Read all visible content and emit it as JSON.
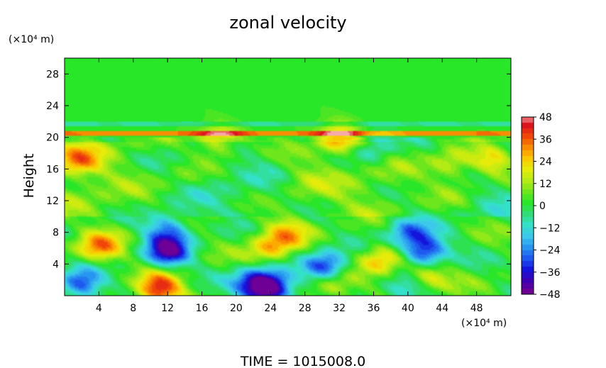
{
  "chart_data": {
    "type": "heatmap",
    "title": "zonal velocity",
    "ylabel": "Height",
    "y_unit": "(×10⁴ m)",
    "x_unit": "(×10⁴ m)",
    "footer": "TIME = 1015008.0",
    "xlim": [
      0,
      52
    ],
    "ylim": [
      0,
      30
    ],
    "x_ticks": [
      4,
      8,
      12,
      16,
      20,
      24,
      28,
      32,
      36,
      40,
      44,
      48
    ],
    "y_ticks": [
      4,
      8,
      12,
      16,
      20,
      24,
      28
    ],
    "x_tick_labels": [
      "4",
      "8",
      "12",
      "16",
      "20",
      "24",
      "28",
      "32",
      "36",
      "40",
      "44",
      "48"
    ],
    "y_tick_labels": [
      "4",
      "8",
      "12",
      "16",
      "20",
      "24",
      "28"
    ],
    "colorbar": {
      "min": -48,
      "max": 48,
      "ticks": [
        48,
        36,
        24,
        12,
        0,
        -12,
        -24,
        -36,
        -48
      ],
      "tick_labels": [
        "48",
        "36",
        "24",
        "12",
        "0",
        "−12",
        "−24",
        "−36",
        "−48"
      ]
    },
    "features": [
      {
        "x": 4,
        "y": 6,
        "value": 36
      },
      {
        "x": 11,
        "y": 0.8,
        "value": 48
      },
      {
        "x": 2,
        "y": 1.5,
        "value": -30
      },
      {
        "x": 12,
        "y": 5.5,
        "value": -36
      },
      {
        "x": 12,
        "y": 8.5,
        "value": -20
      },
      {
        "x": 24,
        "y": 6,
        "value": 30
      },
      {
        "x": 26,
        "y": 8,
        "value": 24
      },
      {
        "x": 24,
        "y": 1,
        "value": -44
      },
      {
        "x": 22,
        "y": 1.5,
        "value": -24
      },
      {
        "x": 30.5,
        "y": 3.5,
        "value": -36
      },
      {
        "x": 31,
        "y": 1.5,
        "value": 30
      },
      {
        "x": 42,
        "y": 5.5,
        "value": -36
      },
      {
        "x": 40,
        "y": 8,
        "value": -20
      },
      {
        "x": 42,
        "y": 2.5,
        "value": 30
      },
      {
        "x": 37,
        "y": 4.5,
        "value": 30
      },
      {
        "x": 1.5,
        "y": 17,
        "value": 30
      },
      {
        "x": 50,
        "y": 17,
        "value": 30
      },
      {
        "x": 18,
        "y": 19.5,
        "value": 30
      },
      {
        "x": 32,
        "y": 20,
        "value": 30
      },
      {
        "x": 45,
        "y": 16.5,
        "value": 24
      },
      {
        "x": 28,
        "y": 14.5,
        "value": 12
      },
      {
        "x": 36,
        "y": 18.5,
        "value": -12
      },
      {
        "x": 46,
        "y": 13.5,
        "value": 12
      },
      {
        "x": 14,
        "y": 15,
        "value": 12
      },
      {
        "x": 40,
        "y": 0.5,
        "value": -12
      }
    ]
  }
}
